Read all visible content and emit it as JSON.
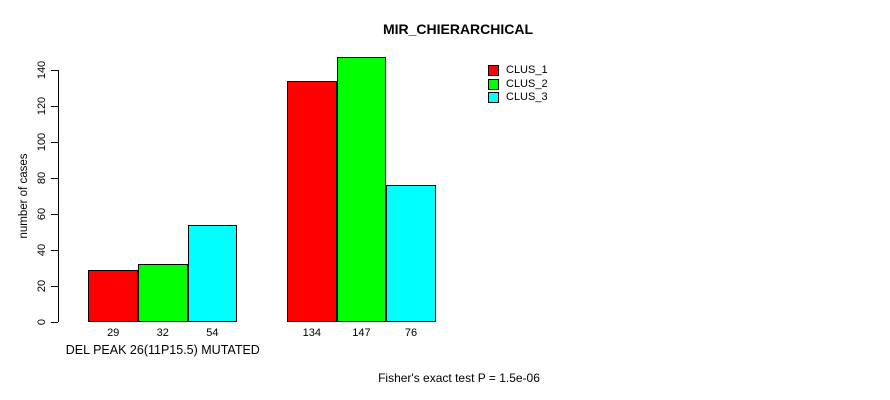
{
  "title": "MIR_CHIERARCHICAL",
  "annotation": "Fisher's exact test P = 1.5e-06",
  "chart_data": {
    "type": "bar",
    "title": "MIR_CHIERARCHICAL",
    "xlabel": "",
    "ylabel": "number of cases",
    "ylim": [
      0,
      140
    ],
    "yticks": [
      0,
      20,
      40,
      60,
      80,
      100,
      120,
      140
    ],
    "grid": false,
    "legend_position": "top-right",
    "bar_value_labels_shown": true,
    "series": [
      {
        "name": "CLUS_1",
        "color": "#FF0000"
      },
      {
        "name": "CLUS_2",
        "color": "#00FF00"
      },
      {
        "name": "CLUS_3",
        "color": "#00FFFF"
      }
    ],
    "groups": [
      {
        "label": "DEL PEAK 26(11P15.5) MUTATED",
        "values": [
          29,
          32,
          54
        ]
      },
      {
        "label": "",
        "values": [
          134,
          147,
          76
        ]
      }
    ],
    "annotation": "Fisher's exact test P = 1.5e-06"
  }
}
